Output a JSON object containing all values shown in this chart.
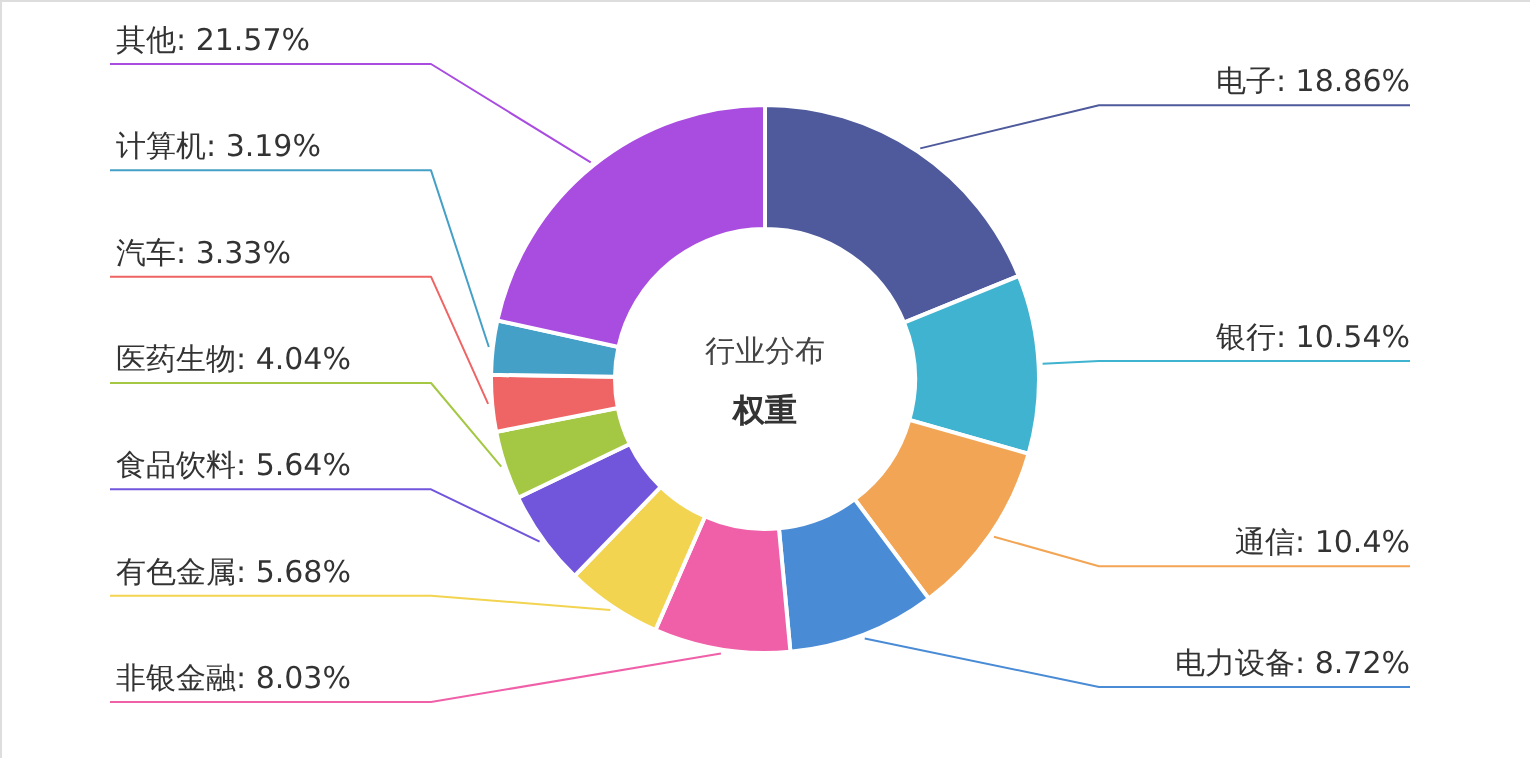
{
  "chart_data": {
    "type": "donut",
    "title": "行业分布",
    "subtitle": "权重",
    "categories": [
      "电子",
      "银行",
      "通信",
      "电力设备",
      "非银金融",
      "有色金属",
      "食品饮料",
      "医药生物",
      "汽车",
      "计算机",
      "其他"
    ],
    "values": [
      18.86,
      10.54,
      10.4,
      8.72,
      8.03,
      5.68,
      5.64,
      4.04,
      3.33,
      3.19,
      21.57
    ],
    "value_labels": [
      "18.86%",
      "10.54%",
      "10.4%",
      "8.72%",
      "8.03%",
      "5.68%",
      "5.64%",
      "4.04%",
      "3.33%",
      "3.19%",
      "21.57%"
    ],
    "colors": [
      "#4e5a9b",
      "#3fb3cf",
      "#f2a555",
      "#4a8bd5",
      "#f060a8",
      "#f2d450",
      "#7155db",
      "#a4c843",
      "#ef6464",
      "#45a0c8",
      "#a94ce0"
    ]
  }
}
